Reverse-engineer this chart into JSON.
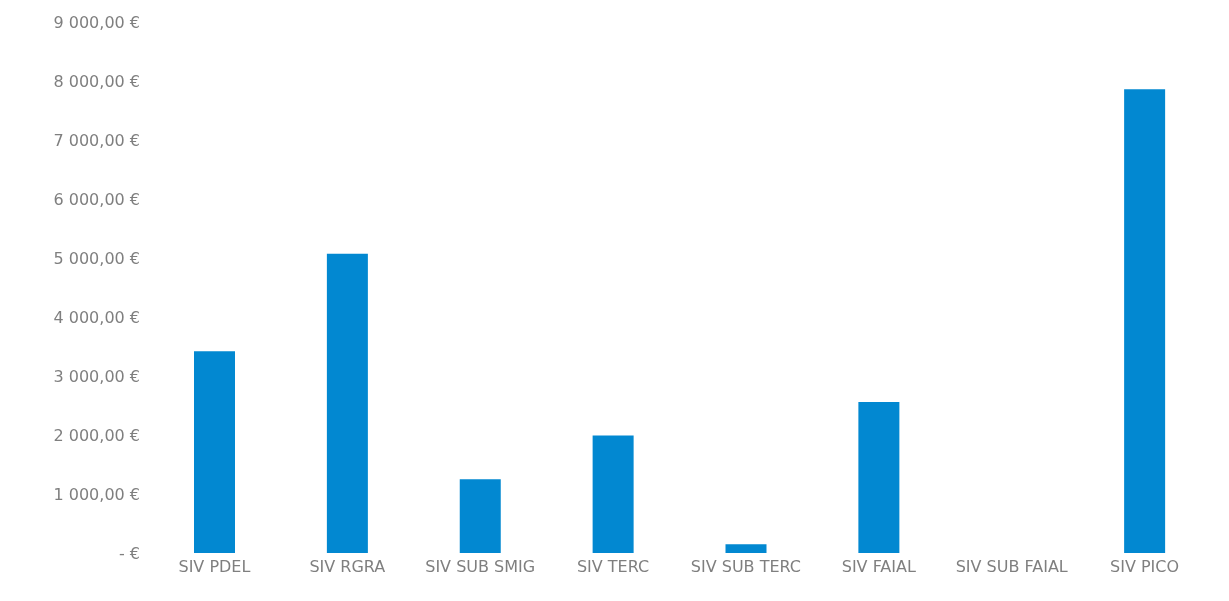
{
  "chart_data": {
    "type": "bar",
    "categories": [
      "SIV PDEL",
      "SIV RGRA",
      "SIV SUB SMIG",
      "SIV TERC",
      "SIV SUB TERC",
      "SIV FAIAL",
      "SIV SUB FAIAL",
      "SIV PICO"
    ],
    "values": [
      3420,
      5070,
      1250,
      1990,
      150,
      2560,
      0,
      7860
    ],
    "color": "#0288d1",
    "ylim": [
      0,
      9000
    ],
    "yticks": [
      {
        "value": 0,
        "label": "-   €"
      },
      {
        "value": 1000,
        "label": "1 000,00 €"
      },
      {
        "value": 2000,
        "label": "2 000,00 €"
      },
      {
        "value": 3000,
        "label": "3 000,00 €"
      },
      {
        "value": 4000,
        "label": "4 000,00 €"
      },
      {
        "value": 5000,
        "label": "5 000,00 €"
      },
      {
        "value": 6000,
        "label": "6 000,00 €"
      },
      {
        "value": 7000,
        "label": "7 000,00 €"
      },
      {
        "value": 8000,
        "label": "8 000,00 €"
      },
      {
        "value": 9000,
        "label": "9 000,00 €"
      }
    ],
    "grid": false
  }
}
